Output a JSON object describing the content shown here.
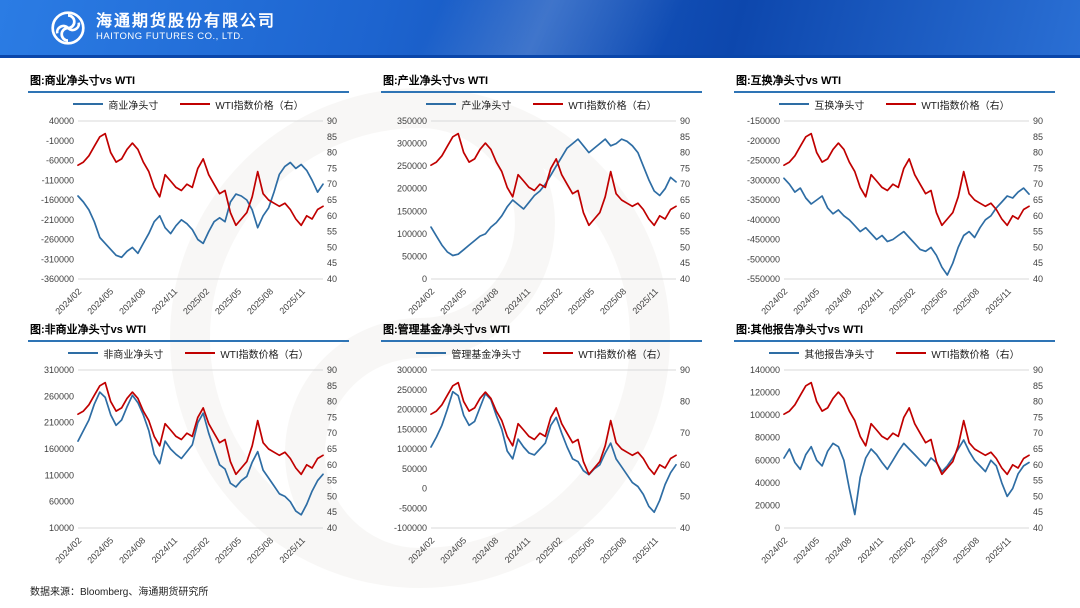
{
  "header": {
    "company_cn": "海通期货股份有限公司",
    "company_en": "HAITONG FUTURES CO., LTD."
  },
  "footer": {
    "source": "数据来源：Bloomberg、海通期货研究所"
  },
  "colors": {
    "blue_line": "#2e6da4",
    "red_line": "#c00000",
    "title_rule": "#2e74b5",
    "banner_blue": "#0d47ad"
  },
  "chart_data": [
    {
      "type": "line",
      "title": "图:商业净头寸vs WTI",
      "x_tick_labels": [
        "2024/02",
        "2024/05",
        "2024/08",
        "2024/11",
        "2025/02",
        "2025/05",
        "2025/08",
        "2025/11"
      ],
      "left_axis": {
        "ticks": [
          "40000",
          "-10000",
          "-60000",
          "-110000",
          "-160000",
          "-210000",
          "-260000",
          "-310000",
          "-360000"
        ],
        "min": -360000,
        "max": 40000
      },
      "right_axis": {
        "ticks": [
          "90",
          "85",
          "80",
          "75",
          "70",
          "65",
          "60",
          "55",
          "50",
          "45",
          "40"
        ],
        "min": 40,
        "max": 90
      },
      "series": [
        {
          "name": "商业净头寸",
          "axis": "left",
          "color": "#2e6da4",
          "values": [
            -150000,
            -165000,
            -185000,
            -215000,
            -255000,
            -270000,
            -285000,
            -300000,
            -305000,
            -290000,
            -280000,
            -295000,
            -270000,
            -245000,
            -215000,
            -200000,
            -230000,
            -245000,
            -225000,
            -210000,
            -220000,
            -235000,
            -260000,
            -270000,
            -240000,
            -215000,
            -205000,
            -215000,
            -165000,
            -145000,
            -150000,
            -160000,
            -185000,
            -230000,
            -200000,
            -180000,
            -140000,
            -95000,
            -75000,
            -65000,
            -80000,
            -70000,
            -85000,
            -110000,
            -140000,
            -120000
          ]
        },
        {
          "name": "WTI指数价格（右）",
          "axis": "right",
          "color": "#c00000",
          "values": [
            76,
            77,
            79,
            82,
            85,
            86,
            80,
            77,
            78,
            81,
            83,
            81,
            77,
            74,
            69,
            66,
            73,
            71,
            69,
            68,
            70,
            69,
            75,
            78,
            73,
            70,
            67,
            68,
            61,
            57,
            59,
            61,
            66,
            74,
            67,
            65,
            64,
            63,
            64,
            62,
            59,
            57,
            60,
            59,
            62,
            63
          ]
        }
      ]
    },
    {
      "type": "line",
      "title": "图:产业净头寸vs WTI",
      "x_tick_labels": [
        "2024/02",
        "2024/05",
        "2024/08",
        "2024/11",
        "2025/02",
        "2025/05",
        "2025/08",
        "2025/11"
      ],
      "left_axis": {
        "ticks": [
          "350000",
          "300000",
          "250000",
          "200000",
          "150000",
          "100000",
          "50000",
          "0"
        ],
        "min": 0,
        "max": 350000
      },
      "right_axis": {
        "ticks": [
          "90",
          "85",
          "80",
          "75",
          "70",
          "65",
          "60",
          "55",
          "50",
          "45",
          "40"
        ],
        "min": 40,
        "max": 90
      },
      "series": [
        {
          "name": "产业净头寸",
          "axis": "left",
          "color": "#2e6da4",
          "values": [
            115000,
            95000,
            75000,
            60000,
            52000,
            55000,
            65000,
            75000,
            85000,
            95000,
            100000,
            115000,
            125000,
            140000,
            160000,
            175000,
            165000,
            155000,
            170000,
            185000,
            195000,
            210000,
            230000,
            250000,
            270000,
            290000,
            300000,
            310000,
            295000,
            280000,
            290000,
            300000,
            310000,
            295000,
            300000,
            310000,
            305000,
            295000,
            280000,
            250000,
            220000,
            195000,
            185000,
            200000,
            225000,
            215000
          ]
        },
        {
          "name": "WTI指数价格（右）",
          "axis": "right",
          "color": "#c00000",
          "values": [
            76,
            77,
            79,
            82,
            85,
            86,
            80,
            77,
            78,
            81,
            83,
            81,
            77,
            74,
            69,
            66,
            73,
            71,
            69,
            68,
            70,
            69,
            75,
            78,
            73,
            70,
            67,
            68,
            61,
            57,
            59,
            61,
            66,
            74,
            67,
            65,
            64,
            63,
            64,
            62,
            59,
            57,
            60,
            59,
            62,
            63
          ]
        }
      ]
    },
    {
      "type": "line",
      "title": "图:互换净头寸vs WTI",
      "x_tick_labels": [
        "2024/02",
        "2024/05",
        "2024/08",
        "2024/11",
        "2025/02",
        "2025/05",
        "2025/08",
        "2025/11"
      ],
      "left_axis": {
        "ticks": [
          "-150000",
          "-200000",
          "-250000",
          "-300000",
          "-350000",
          "-400000",
          "-450000",
          "-500000",
          "-550000"
        ],
        "min": -550000,
        "max": -150000
      },
      "right_axis": {
        "ticks": [
          "90",
          "85",
          "80",
          "75",
          "70",
          "65",
          "60",
          "55",
          "50",
          "45",
          "40"
        ],
        "min": 40,
        "max": 90
      },
      "series": [
        {
          "name": "互换净头寸",
          "axis": "left",
          "color": "#2e6da4",
          "values": [
            -295000,
            -310000,
            -330000,
            -320000,
            -345000,
            -360000,
            -350000,
            -340000,
            -370000,
            -385000,
            -375000,
            -390000,
            -400000,
            -415000,
            -430000,
            -420000,
            -435000,
            -450000,
            -440000,
            -455000,
            -450000,
            -440000,
            -430000,
            -445000,
            -460000,
            -475000,
            -480000,
            -470000,
            -490000,
            -520000,
            -540000,
            -510000,
            -470000,
            -440000,
            -430000,
            -445000,
            -420000,
            -400000,
            -390000,
            -370000,
            -355000,
            -340000,
            -345000,
            -330000,
            -320000,
            -335000
          ]
        },
        {
          "name": "WTI指数价格（右）",
          "axis": "right",
          "color": "#c00000",
          "values": [
            76,
            77,
            79,
            82,
            85,
            86,
            80,
            77,
            78,
            81,
            83,
            81,
            77,
            74,
            69,
            66,
            73,
            71,
            69,
            68,
            70,
            69,
            75,
            78,
            73,
            70,
            67,
            68,
            61,
            57,
            59,
            61,
            66,
            74,
            67,
            65,
            64,
            63,
            64,
            62,
            59,
            57,
            60,
            59,
            62,
            63
          ]
        }
      ]
    },
    {
      "type": "line",
      "title": "图:非商业净头寸vs WTI",
      "x_tick_labels": [
        "2024/02",
        "2024/05",
        "2024/08",
        "2024/11",
        "2025/02",
        "2025/05",
        "2025/08",
        "2025/11"
      ],
      "left_axis": {
        "ticks": [
          "310000",
          "260000",
          "210000",
          "160000",
          "110000",
          "60000",
          "10000"
        ],
        "min": 10000,
        "max": 310000
      },
      "right_axis": {
        "ticks": [
          "90",
          "85",
          "80",
          "75",
          "70",
          "65",
          "60",
          "55",
          "50",
          "45",
          "40"
        ],
        "min": 40,
        "max": 90
      },
      "series": [
        {
          "name": "非商业净头寸",
          "axis": "left",
          "color": "#2e6da4",
          "values": [
            175000,
            195000,
            215000,
            245000,
            268000,
            258000,
            225000,
            205000,
            215000,
            240000,
            262000,
            248000,
            225000,
            195000,
            150000,
            132000,
            175000,
            160000,
            150000,
            142000,
            155000,
            168000,
            210000,
            228000,
            190000,
            160000,
            130000,
            122000,
            95000,
            88000,
            100000,
            108000,
            135000,
            155000,
            120000,
            105000,
            90000,
            75000,
            70000,
            60000,
            42000,
            35000,
            55000,
            80000,
            100000,
            112000
          ]
        },
        {
          "name": "WTI指数价格（右）",
          "axis": "right",
          "color": "#c00000",
          "values": [
            76,
            77,
            79,
            82,
            85,
            86,
            80,
            77,
            78,
            81,
            83,
            81,
            77,
            74,
            69,
            66,
            73,
            71,
            69,
            68,
            70,
            69,
            75,
            78,
            73,
            70,
            67,
            68,
            61,
            57,
            59,
            61,
            66,
            74,
            67,
            65,
            64,
            63,
            64,
            62,
            59,
            57,
            60,
            59,
            62,
            63
          ]
        }
      ]
    },
    {
      "type": "line",
      "title": "图:管理基金净头寸vs WTI",
      "x_tick_labels": [
        "2024/02",
        "2024/05",
        "2024/08",
        "2024/11",
        "2025/02",
        "2025/05",
        "2025/08",
        "2025/11"
      ],
      "left_axis": {
        "ticks": [
          "300000",
          "250000",
          "200000",
          "150000",
          "100000",
          "50000",
          "0",
          "-50000",
          "-100000"
        ],
        "min": -100000,
        "max": 300000
      },
      "right_axis": {
        "ticks": [
          "90",
          "80",
          "70",
          "60",
          "50",
          "40"
        ],
        "min": 40,
        "max": 90
      },
      "series": [
        {
          "name": "管理基金净头寸",
          "axis": "left",
          "color": "#2e6da4",
          "values": [
            105000,
            130000,
            160000,
            200000,
            245000,
            235000,
            185000,
            160000,
            170000,
            205000,
            240000,
            225000,
            185000,
            150000,
            95000,
            75000,
            125000,
            105000,
            90000,
            85000,
            100000,
            115000,
            160000,
            180000,
            140000,
            105000,
            75000,
            68000,
            45000,
            35000,
            50000,
            60000,
            90000,
            115000,
            75000,
            55000,
            35000,
            15000,
            5000,
            -15000,
            -45000,
            -60000,
            -30000,
            10000,
            40000,
            60000
          ]
        },
        {
          "name": "WTI指数价格（右）",
          "axis": "right",
          "color": "#c00000",
          "values": [
            76,
            77,
            79,
            82,
            85,
            86,
            80,
            77,
            78,
            81,
            83,
            81,
            77,
            74,
            69,
            66,
            73,
            71,
            69,
            68,
            70,
            69,
            75,
            78,
            73,
            70,
            67,
            68,
            61,
            57,
            59,
            61,
            66,
            74,
            67,
            65,
            64,
            63,
            64,
            62,
            59,
            57,
            60,
            59,
            62,
            63
          ]
        }
      ]
    },
    {
      "type": "line",
      "title": "图:其他报告净头寸vs WTI",
      "x_tick_labels": [
        "2024/02",
        "2024/05",
        "2024/08",
        "2024/11",
        "2025/02",
        "2025/05",
        "2025/08",
        "2025/11"
      ],
      "left_axis": {
        "ticks": [
          "140000",
          "120000",
          "100000",
          "80000",
          "60000",
          "40000",
          "20000",
          "0"
        ],
        "min": 0,
        "max": 140000
      },
      "right_axis": {
        "ticks": [
          "90",
          "85",
          "80",
          "75",
          "70",
          "65",
          "60",
          "55",
          "50",
          "45",
          "40"
        ],
        "min": 40,
        "max": 90
      },
      "series": [
        {
          "name": "其他报告净头寸",
          "axis": "left",
          "color": "#2e6da4",
          "values": [
            62000,
            70000,
            58000,
            52000,
            65000,
            72000,
            60000,
            55000,
            68000,
            75000,
            72000,
            60000,
            35000,
            12000,
            45000,
            62000,
            70000,
            65000,
            58000,
            52000,
            60000,
            68000,
            75000,
            70000,
            65000,
            60000,
            55000,
            62000,
            58000,
            50000,
            55000,
            62000,
            70000,
            78000,
            68000,
            60000,
            55000,
            50000,
            60000,
            55000,
            40000,
            28000,
            35000,
            48000,
            55000,
            58000
          ]
        },
        {
          "name": "WTI指数价格（右）",
          "axis": "right",
          "color": "#c00000",
          "values": [
            76,
            77,
            79,
            82,
            85,
            86,
            80,
            77,
            78,
            81,
            83,
            81,
            77,
            74,
            69,
            66,
            73,
            71,
            69,
            68,
            70,
            69,
            75,
            78,
            73,
            70,
            67,
            68,
            61,
            57,
            59,
            61,
            66,
            74,
            67,
            65,
            64,
            63,
            64,
            62,
            59,
            57,
            60,
            59,
            62,
            63
          ]
        }
      ]
    }
  ]
}
